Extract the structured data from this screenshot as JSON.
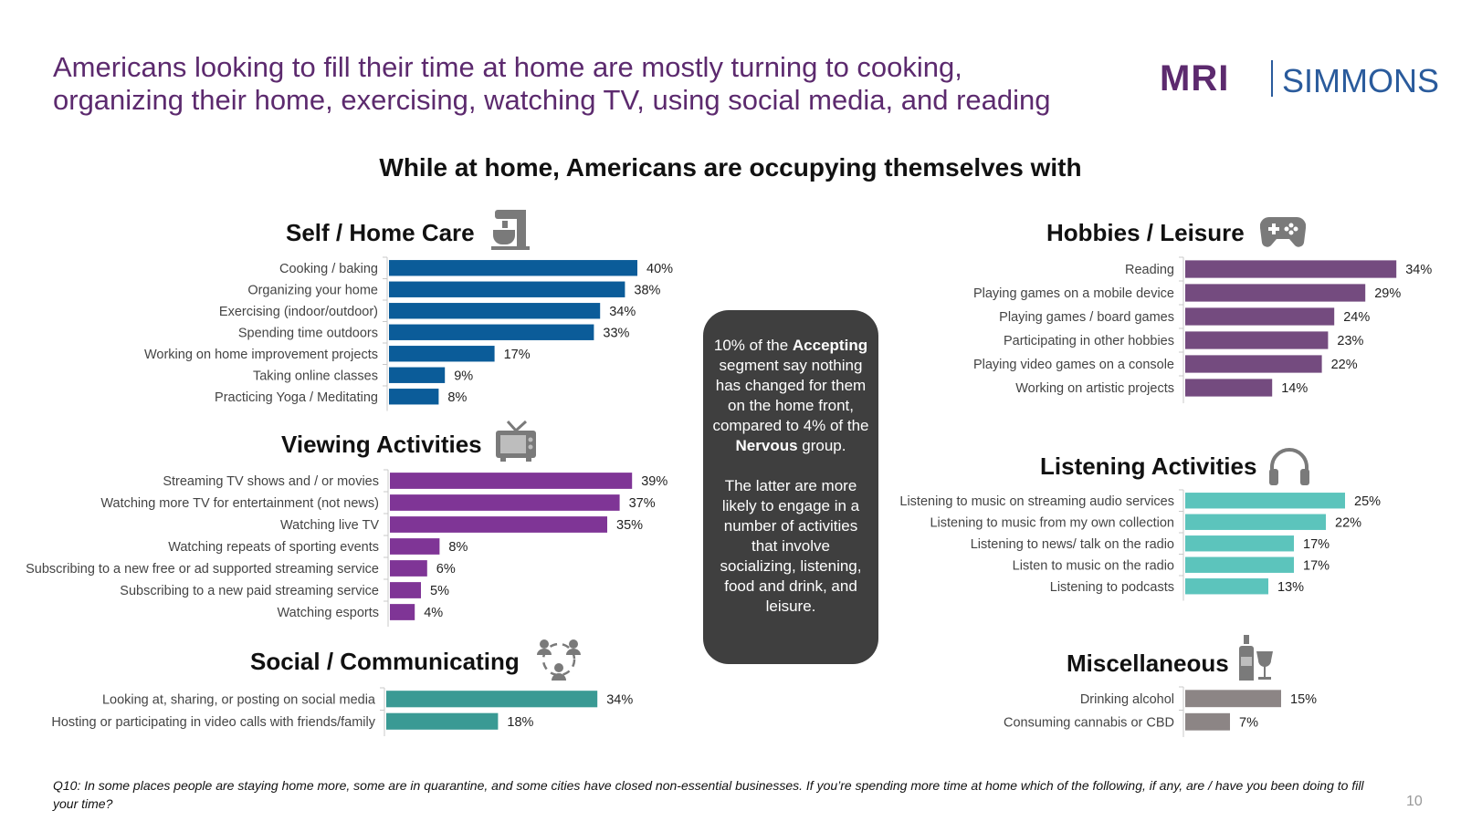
{
  "headline": [
    "Americans looking to fill their time at home are mostly turning to cooking,",
    "organizing their home, exercising, watching TV, using social media, and reading"
  ],
  "logo": {
    "mri": "MRI",
    "simmons": "SIMMONS"
  },
  "subtitle": "While at home, Americans are occupying themselves with",
  "sections": {
    "self": {
      "title": "Self / Home Care",
      "icon": "mixer-icon"
    },
    "viewing": {
      "title": "Viewing Activities",
      "icon": "tv-icon"
    },
    "social": {
      "title": "Social / Communicating",
      "icon": "people-network-icon"
    },
    "hobbies": {
      "title": "Hobbies / Leisure",
      "icon": "gamepad-icon"
    },
    "listening": {
      "title": "Listening Activities",
      "icon": "headphones-icon"
    },
    "misc": {
      "title": "Miscellaneous",
      "icon": "bottle-glass-icon"
    }
  },
  "callout": {
    "p1_a": "10% of the",
    "p1_b": "Accepting",
    "p1_c": "segment say nothing has changed for them on the home front, compared to 4% of the",
    "p1_d": "Nervous",
    "p1_e": "group.",
    "p2": "The latter are more likely to engage in a number of activities that involve socializing, listening, food and drink, and leisure."
  },
  "footnote": "Q10: In some places people are staying home more, some are in quarantine, and some cities have closed non-essential businesses. If you’re spending more time at home which of the following, if any, are / have you been doing to fill your time?",
  "page_number": "10",
  "chart_data": [
    {
      "id": "self",
      "type": "bar",
      "orientation": "horizontal",
      "title": "Self / Home Care",
      "color": "#0b5c99",
      "categories": [
        "Cooking / baking",
        "Organizing your home",
        "Exercising (indoor/outdoor)",
        "Spending time outdoors",
        "Working on home improvement projects",
        "Taking online classes",
        "Practicing Yoga / Meditating"
      ],
      "values": [
        40,
        38,
        34,
        33,
        17,
        9,
        8
      ],
      "unit": "%"
    },
    {
      "id": "viewing",
      "type": "bar",
      "orientation": "horizontal",
      "title": "Viewing Activities",
      "color": "#7f3596",
      "categories": [
        "Streaming TV shows and / or movies",
        "Watching more TV for entertainment (not news)",
        "Watching live TV",
        "Watching repeats of sporting events",
        "Subscribing to a new free or ad supported streaming service",
        "Subscribing to a new paid streaming service",
        "Watching esports"
      ],
      "values": [
        39,
        37,
        35,
        8,
        6,
        5,
        4
      ],
      "unit": "%"
    },
    {
      "id": "social",
      "type": "bar",
      "orientation": "horizontal",
      "title": "Social / Communicating",
      "color": "#3a9a94",
      "categories": [
        "Looking at, sharing, or posting on social media",
        "Hosting or participating in video calls with friends/family"
      ],
      "values": [
        34,
        18
      ],
      "unit": "%"
    },
    {
      "id": "hobbies",
      "type": "bar",
      "orientation": "horizontal",
      "title": "Hobbies / Leisure",
      "color": "#744b7f",
      "categories": [
        "Reading",
        "Playing games on a mobile device",
        "Playing games / board games",
        "Participating in other hobbies",
        "Playing video games on a console",
        "Working on artistic projects"
      ],
      "values": [
        34,
        29,
        24,
        23,
        22,
        14
      ],
      "unit": "%"
    },
    {
      "id": "listening",
      "type": "bar",
      "orientation": "horizontal",
      "title": "Listening Activities",
      "color": "#5cc4bc",
      "categories": [
        "Listening to music on streaming audio services",
        "Listening to music from my own collection",
        "Listening to news/ talk on the radio",
        "Listen to music on the radio",
        "Listening to podcasts"
      ],
      "values": [
        25,
        22,
        17,
        17,
        13
      ],
      "unit": "%"
    },
    {
      "id": "misc",
      "type": "bar",
      "orientation": "horizontal",
      "title": "Miscellaneous",
      "color": "#8c8585",
      "categories": [
        "Drinking alcohol",
        "Consuming cannabis or CBD"
      ],
      "values": [
        15,
        7
      ],
      "unit": "%"
    }
  ]
}
